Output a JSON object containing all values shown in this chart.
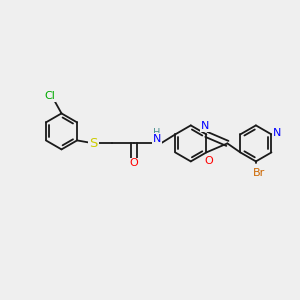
{
  "background_color": "#efefef",
  "bond_color": "#1a1a1a",
  "colors": {
    "Cl": "#00aa00",
    "S": "#cccc00",
    "O": "#ff0000",
    "N": "#0000ff",
    "Br": "#cc6600",
    "H": "#4a9090",
    "C": "#1a1a1a"
  },
  "bw": 1.3,
  "fs": 8.0
}
